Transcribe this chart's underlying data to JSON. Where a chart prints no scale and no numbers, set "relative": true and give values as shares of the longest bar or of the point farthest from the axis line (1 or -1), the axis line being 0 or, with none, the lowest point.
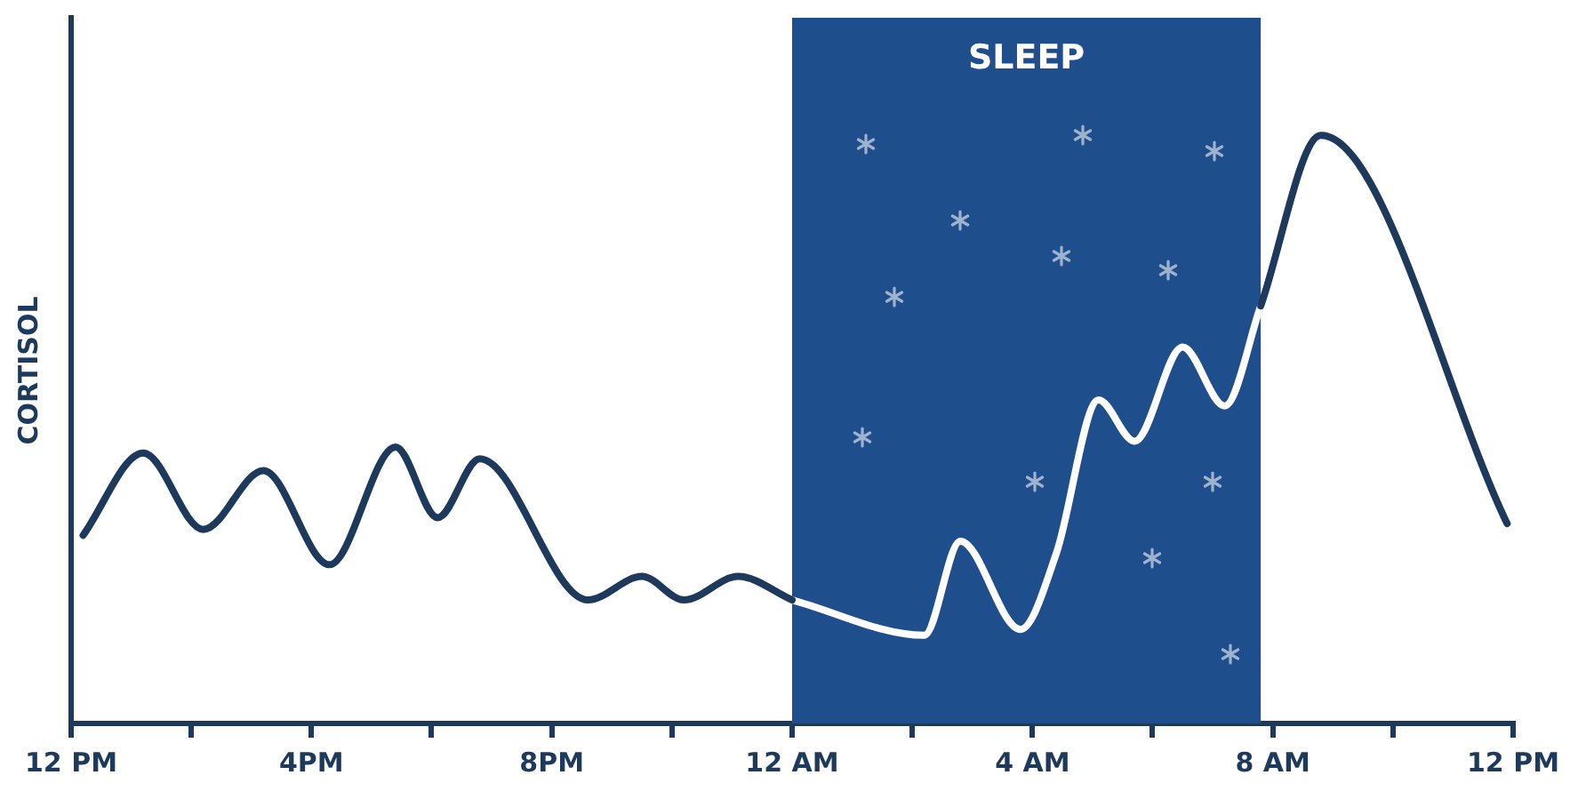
{
  "chart_data": {
    "type": "line",
    "ylabel": "CORTISOL",
    "relative": true,
    "marker": "none",
    "grid": false,
    "legend": false,
    "xlim": [
      "--01-01T12:00",
      "--01-02T12:00"
    ],
    "xticks": [
      {
        "value": "--01-01T12:00",
        "label": "12 PM"
      },
      {
        "value": "--01-01T14:00",
        "label": null
      },
      {
        "value": "--01-01T16:00",
        "label": "4PM"
      },
      {
        "value": "--01-01T18:00",
        "label": null
      },
      {
        "value": "--01-01T20:00",
        "label": "8PM"
      },
      {
        "value": "--01-01T22:00",
        "label": null
      },
      {
        "value": "--01-02T00:00",
        "label": "12 AM"
      },
      {
        "value": "--01-02T02:00",
        "label": null
      },
      {
        "value": "--01-02T04:00",
        "label": "4 AM"
      },
      {
        "value": "--01-02T06:00",
        "label": null
      },
      {
        "value": "--01-02T08:00",
        "label": "8 AM"
      },
      {
        "value": "--01-02T10:00",
        "label": null
      },
      {
        "value": "--01-02T12:00",
        "label": "12 PM"
      }
    ],
    "bands": [
      {
        "axis": "x",
        "from": "--01-02T00:00",
        "to": "--01-02T07:48",
        "label": "SLEEP",
        "color": "#1f4e8c"
      }
    ],
    "series": [
      {
        "color": "#1d3a5c",
        "x": [
          "--01-01T12:12",
          "--01-01T13:12",
          "--01-01T14:12",
          "--01-01T15:12",
          "--01-01T16:18",
          "--01-01T17:24",
          "--01-01T18:06",
          "--01-01T18:48",
          "--01-01T20:36",
          "--01-01T21:30",
          "--01-01T22:12",
          "--01-01T23:06",
          "--01-02T00:00",
          "--01-02T04:00",
          "--01-02T07:48",
          "--01-02T08:48",
          "--01-02T11:54"
        ],
        "values": [
          0.32,
          0.46,
          0.33,
          0.43,
          0.27,
          0.47,
          0.35,
          0.45,
          0.21,
          0.25,
          0.21,
          0.25,
          0.21,
          null,
          0.71,
          1,
          0.34
        ]
      },
      {
        "color": "#ffffff",
        "x": [
          "--01-02T00:00",
          "--01-02T02:12",
          "--01-02T02:48",
          "--01-02T03:48",
          "--01-02T04:24",
          "--01-02T05:06",
          "--01-02T05:42",
          "--01-02T06:30",
          "--01-02T07:12",
          "--01-02T07:48"
        ],
        "values": [
          0.21,
          0.15,
          0.31,
          0.16,
          0.29,
          0.55,
          0.48,
          0.64,
          0.54,
          0.71
        ]
      }
    ]
  }
}
